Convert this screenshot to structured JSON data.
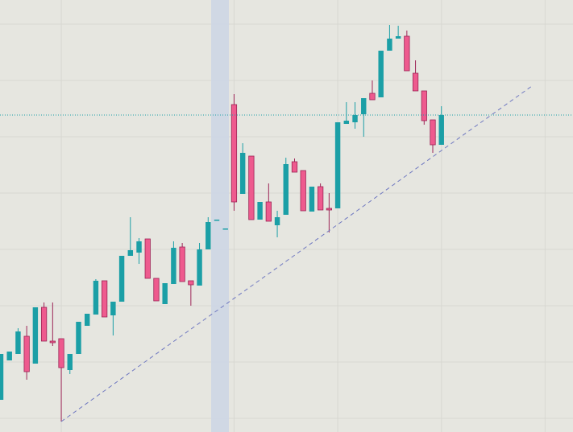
{
  "chart_data": {
    "type": "candlestick",
    "x": [
      0,
      1,
      2,
      3,
      4,
      5,
      6,
      7,
      8,
      9,
      10,
      11,
      12,
      13,
      14,
      15,
      16,
      17,
      18,
      19,
      20,
      21,
      22,
      23,
      24,
      25,
      26,
      27,
      28,
      29,
      30,
      31,
      32,
      33,
      34,
      35,
      36,
      37,
      38,
      39,
      40,
      41,
      42,
      43,
      44,
      45,
      46,
      47,
      48,
      49,
      50,
      51
    ],
    "open": [
      40,
      89,
      97,
      119,
      85,
      155,
      113,
      116,
      77,
      97,
      132,
      146,
      188,
      145,
      162,
      219,
      223,
      240,
      191,
      159,
      184,
      230,
      188,
      182,
      227,
      263,
      252,
      407,
      296,
      343,
      264,
      286,
      257,
      270,
      336,
      325,
      274,
      305,
      278,
      278,
      383,
      385,
      395,
      421,
      416,
      474,
      489,
      492,
      446,
      424,
      388,
      357
    ],
    "high": [
      97,
      100,
      129,
      132,
      155,
      161,
      161,
      116,
      97,
      137,
      147,
      190,
      188,
      162,
      219,
      267,
      241,
      240,
      191,
      185,
      237,
      235,
      188,
      235,
      267,
      264,
      253,
      420,
      359,
      343,
      286,
      309,
      275,
      341,
      340,
      325,
      305,
      309,
      297,
      385,
      410,
      410,
      415,
      437,
      474,
      506,
      505,
      499,
      462,
      424,
      388,
      405
    ],
    "low": [
      40,
      89,
      97,
      65,
      85,
      113,
      107,
      13,
      72,
      97,
      132,
      146,
      143,
      120,
      162,
      219,
      209,
      191,
      163,
      159,
      184,
      187,
      157,
      182,
      227,
      263,
      252,
      275,
      296,
      264,
      264,
      262,
      242,
      270,
      323,
      275,
      274,
      276,
      248,
      278,
      383,
      377,
      367,
      413,
      416,
      474,
      489,
      449,
      424,
      382,
      347,
      357
    ],
    "close": [
      97,
      100,
      125,
      75,
      155,
      113,
      111,
      80,
      97,
      137,
      147,
      188,
      143,
      162,
      219,
      226,
      237,
      191,
      163,
      185,
      229,
      187,
      183,
      227,
      261,
      264,
      253,
      286,
      347,
      264,
      286,
      262,
      267,
      333,
      323,
      275,
      305,
      276,
      276,
      385,
      387,
      394,
      415,
      413,
      474,
      489,
      492,
      449,
      424,
      387,
      357,
      394
    ],
    "up_color": "#1b9fa6",
    "down_color": "#ee5a8e",
    "xlim": [
      -0.093,
      66.23
    ],
    "ylim": [
      0,
      537
    ],
    "xticks": [
      7,
      27,
      39,
      51,
      63
    ],
    "yticks": [
      17,
      87,
      157,
      227,
      297,
      367,
      437,
      507
    ],
    "grid": true,
    "highlight": [
      24.35,
      26.4
    ],
    "price_line": 394,
    "trendline": {
      "x": [
        7,
        61.6
      ],
      "y": [
        13,
        431
      ]
    }
  }
}
